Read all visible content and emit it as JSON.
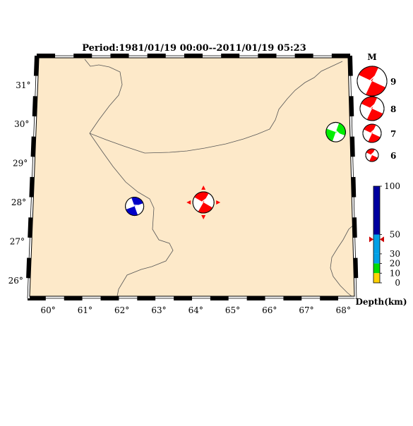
{
  "title": "Period:1981/01/19 00:00--2011/01/19 05:23",
  "map": {
    "land_color": "#fde9c9",
    "border_color": "#555555",
    "frame_color": "#000000"
  },
  "lat_labels": [
    "31°",
    "30°",
    "29°",
    "28°",
    "27°",
    "26°"
  ],
  "lon_labels": [
    "60°",
    "61°",
    "62°",
    "63°",
    "64°",
    "65°",
    "66°",
    "67°",
    "68°"
  ],
  "events": [
    {
      "name": "red-event",
      "lon": 64.2,
      "lat": 28.0,
      "color": "#ff0000",
      "magnitude": 7.0,
      "depth_km": 45,
      "highlighted": true
    },
    {
      "name": "blue-event",
      "lon": 62.3,
      "lat": 27.9,
      "color": "#0000c8",
      "magnitude": 6.5,
      "depth_km": 100
    },
    {
      "name": "green-event",
      "lon": 67.9,
      "lat": 29.8,
      "color": "#00ee00",
      "magnitude": 6.7,
      "depth_km": 15
    }
  ],
  "magnitude_legend": {
    "title": "M",
    "entries": [
      {
        "label": "9",
        "value": 9
      },
      {
        "label": "8",
        "value": 8
      },
      {
        "label": "7",
        "value": 7
      },
      {
        "label": "6",
        "value": 6
      }
    ],
    "color": "#ff0000"
  },
  "depth_scale": {
    "label": "Depth(km)",
    "tick_labels": [
      "100",
      "50",
      "30",
      "20",
      "10",
      "0"
    ],
    "segments": [
      {
        "from": 50,
        "to": 100,
        "color": "#0000a0"
      },
      {
        "from": 30,
        "to": 50,
        "color": "#00a0e6"
      },
      {
        "from": 20,
        "to": 30,
        "color": "#00a0e6"
      },
      {
        "from": 10,
        "to": 20,
        "color": "#00dc00"
      },
      {
        "from": 0,
        "to": 10,
        "color": "#ffd200"
      }
    ],
    "marker_depth": 45,
    "marker_color": "#cc0000"
  }
}
